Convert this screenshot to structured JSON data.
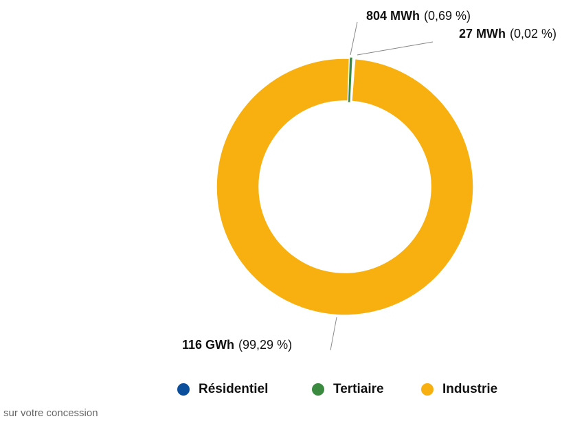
{
  "chart_data": {
    "type": "donut",
    "categories": [
      "Résidentiel",
      "Tertiaire",
      "Industrie"
    ],
    "values": [
      0.69,
      0.02,
      99.29
    ],
    "value_labels": [
      "(0,69 %)",
      "(0,02 %)",
      "(99,29 %)"
    ],
    "energy_labels": [
      "804 MWh",
      "27 MWh",
      "116 GWh"
    ],
    "colors": [
      "#0b4f9c",
      "#3a8a3f",
      "#f7b010"
    ],
    "legend": "bottom",
    "footnote": "sur votre concession"
  }
}
